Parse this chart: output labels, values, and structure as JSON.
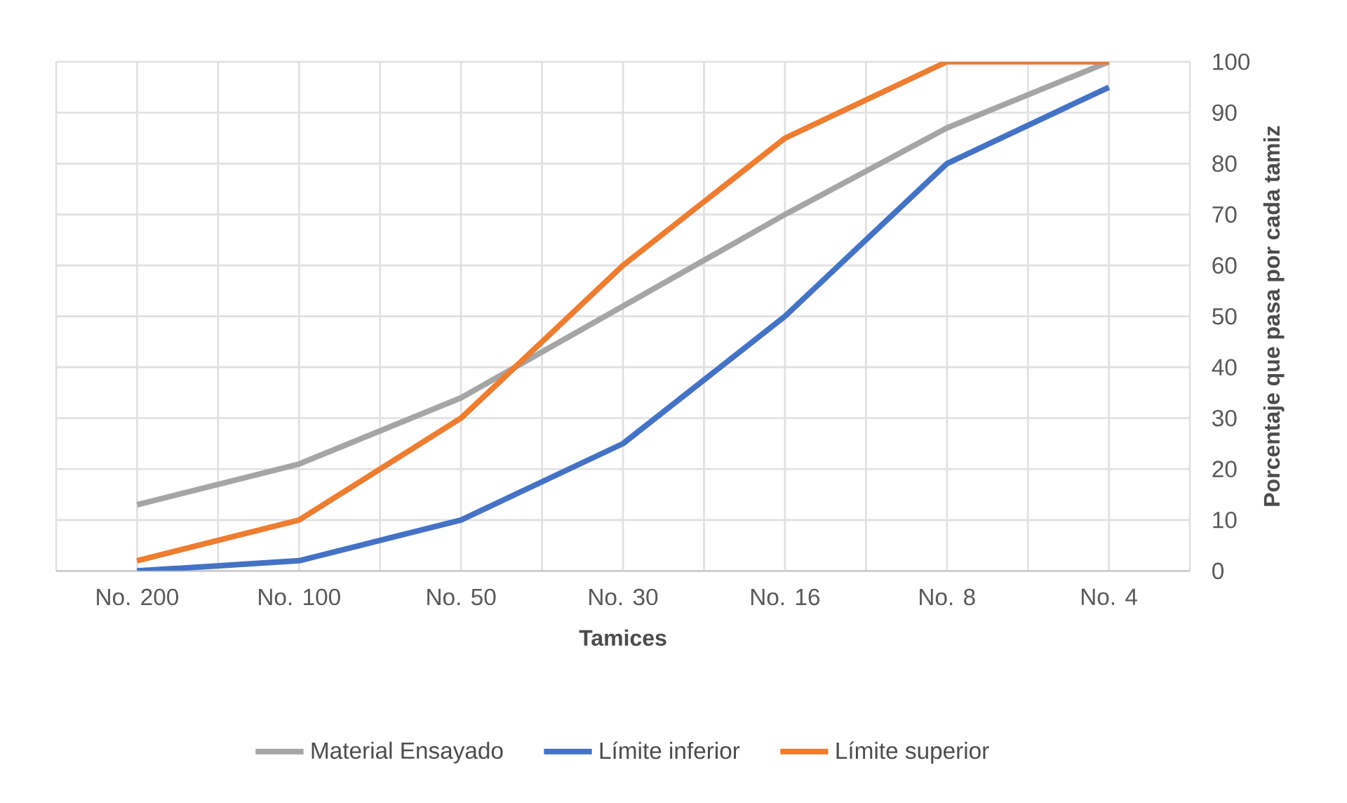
{
  "chart_data": {
    "type": "line",
    "xlabel": "Tamices",
    "ylabel": "Porcentaje que pasa por cada tamiz",
    "categories": [
      "No. 200",
      "No. 100",
      "No. 50",
      "No. 30",
      "No. 16",
      "No. 8",
      "No. 4"
    ],
    "series": [
      {
        "name": "Material Ensayado",
        "color": "#a5a5a5",
        "values": [
          13,
          21,
          34,
          52,
          70,
          87,
          100
        ]
      },
      {
        "name": "Límite inferior",
        "color": "#4472c4",
        "values": [
          0,
          2,
          10,
          25,
          50,
          80,
          95
        ]
      },
      {
        "name": "Límite superior",
        "color": "#ed7d31",
        "values": [
          2,
          10,
          30,
          60,
          85,
          100,
          100
        ]
      }
    ],
    "ylim": [
      0,
      100
    ],
    "yticks": [
      0,
      10,
      20,
      30,
      40,
      50,
      60,
      70,
      80,
      90,
      100
    ],
    "grid": true,
    "legend": "bottom",
    "marker": "none",
    "line_style": "solid"
  }
}
